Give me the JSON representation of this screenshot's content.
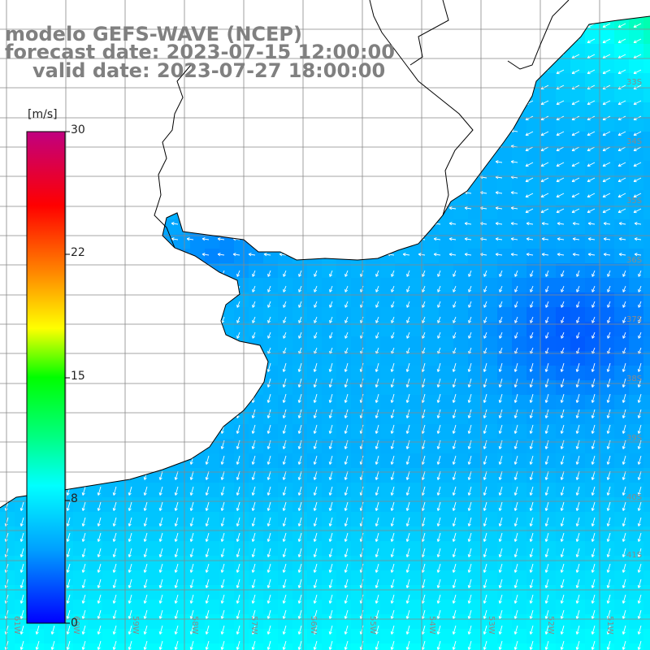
{
  "title": {
    "model": "modelo GEFS-WAVE (NCEP)",
    "forecast": "forecast date: 2023-07-15 12:00:00",
    "valid": "valid date: 2023-07-27 18:00:00"
  },
  "colorbar": {
    "unit": "[m/s]",
    "min": 0,
    "max": 30,
    "tick_labels": [
      "30",
      "22",
      "15",
      "8",
      "0"
    ],
    "tick_values": [
      30,
      22,
      15,
      8,
      0
    ],
    "colors": [
      "#0000ff",
      "#00a0ff",
      "#00ffff",
      "#00ff60",
      "#00ff00",
      "#ffff00",
      "#ff8000",
      "#ff0000",
      "#d00060",
      "#c00080"
    ]
  },
  "map": {
    "lat_labels": [
      "33S",
      "34S",
      "35S",
      "36S",
      "37S",
      "38S",
      "39S",
      "40S",
      "41S"
    ],
    "lon_labels": [
      "61W",
      "60W",
      "59W",
      "58W",
      "57W",
      "56W",
      "55W",
      "54W",
      "53W",
      "52W",
      "51W"
    ],
    "colors": {
      "land": "#ffffff",
      "coast": "#000000",
      "grid": "#888888",
      "arrow": "#ffffff"
    },
    "wind_direction": "blowing from the northeast / north toward the south-southwest"
  }
}
